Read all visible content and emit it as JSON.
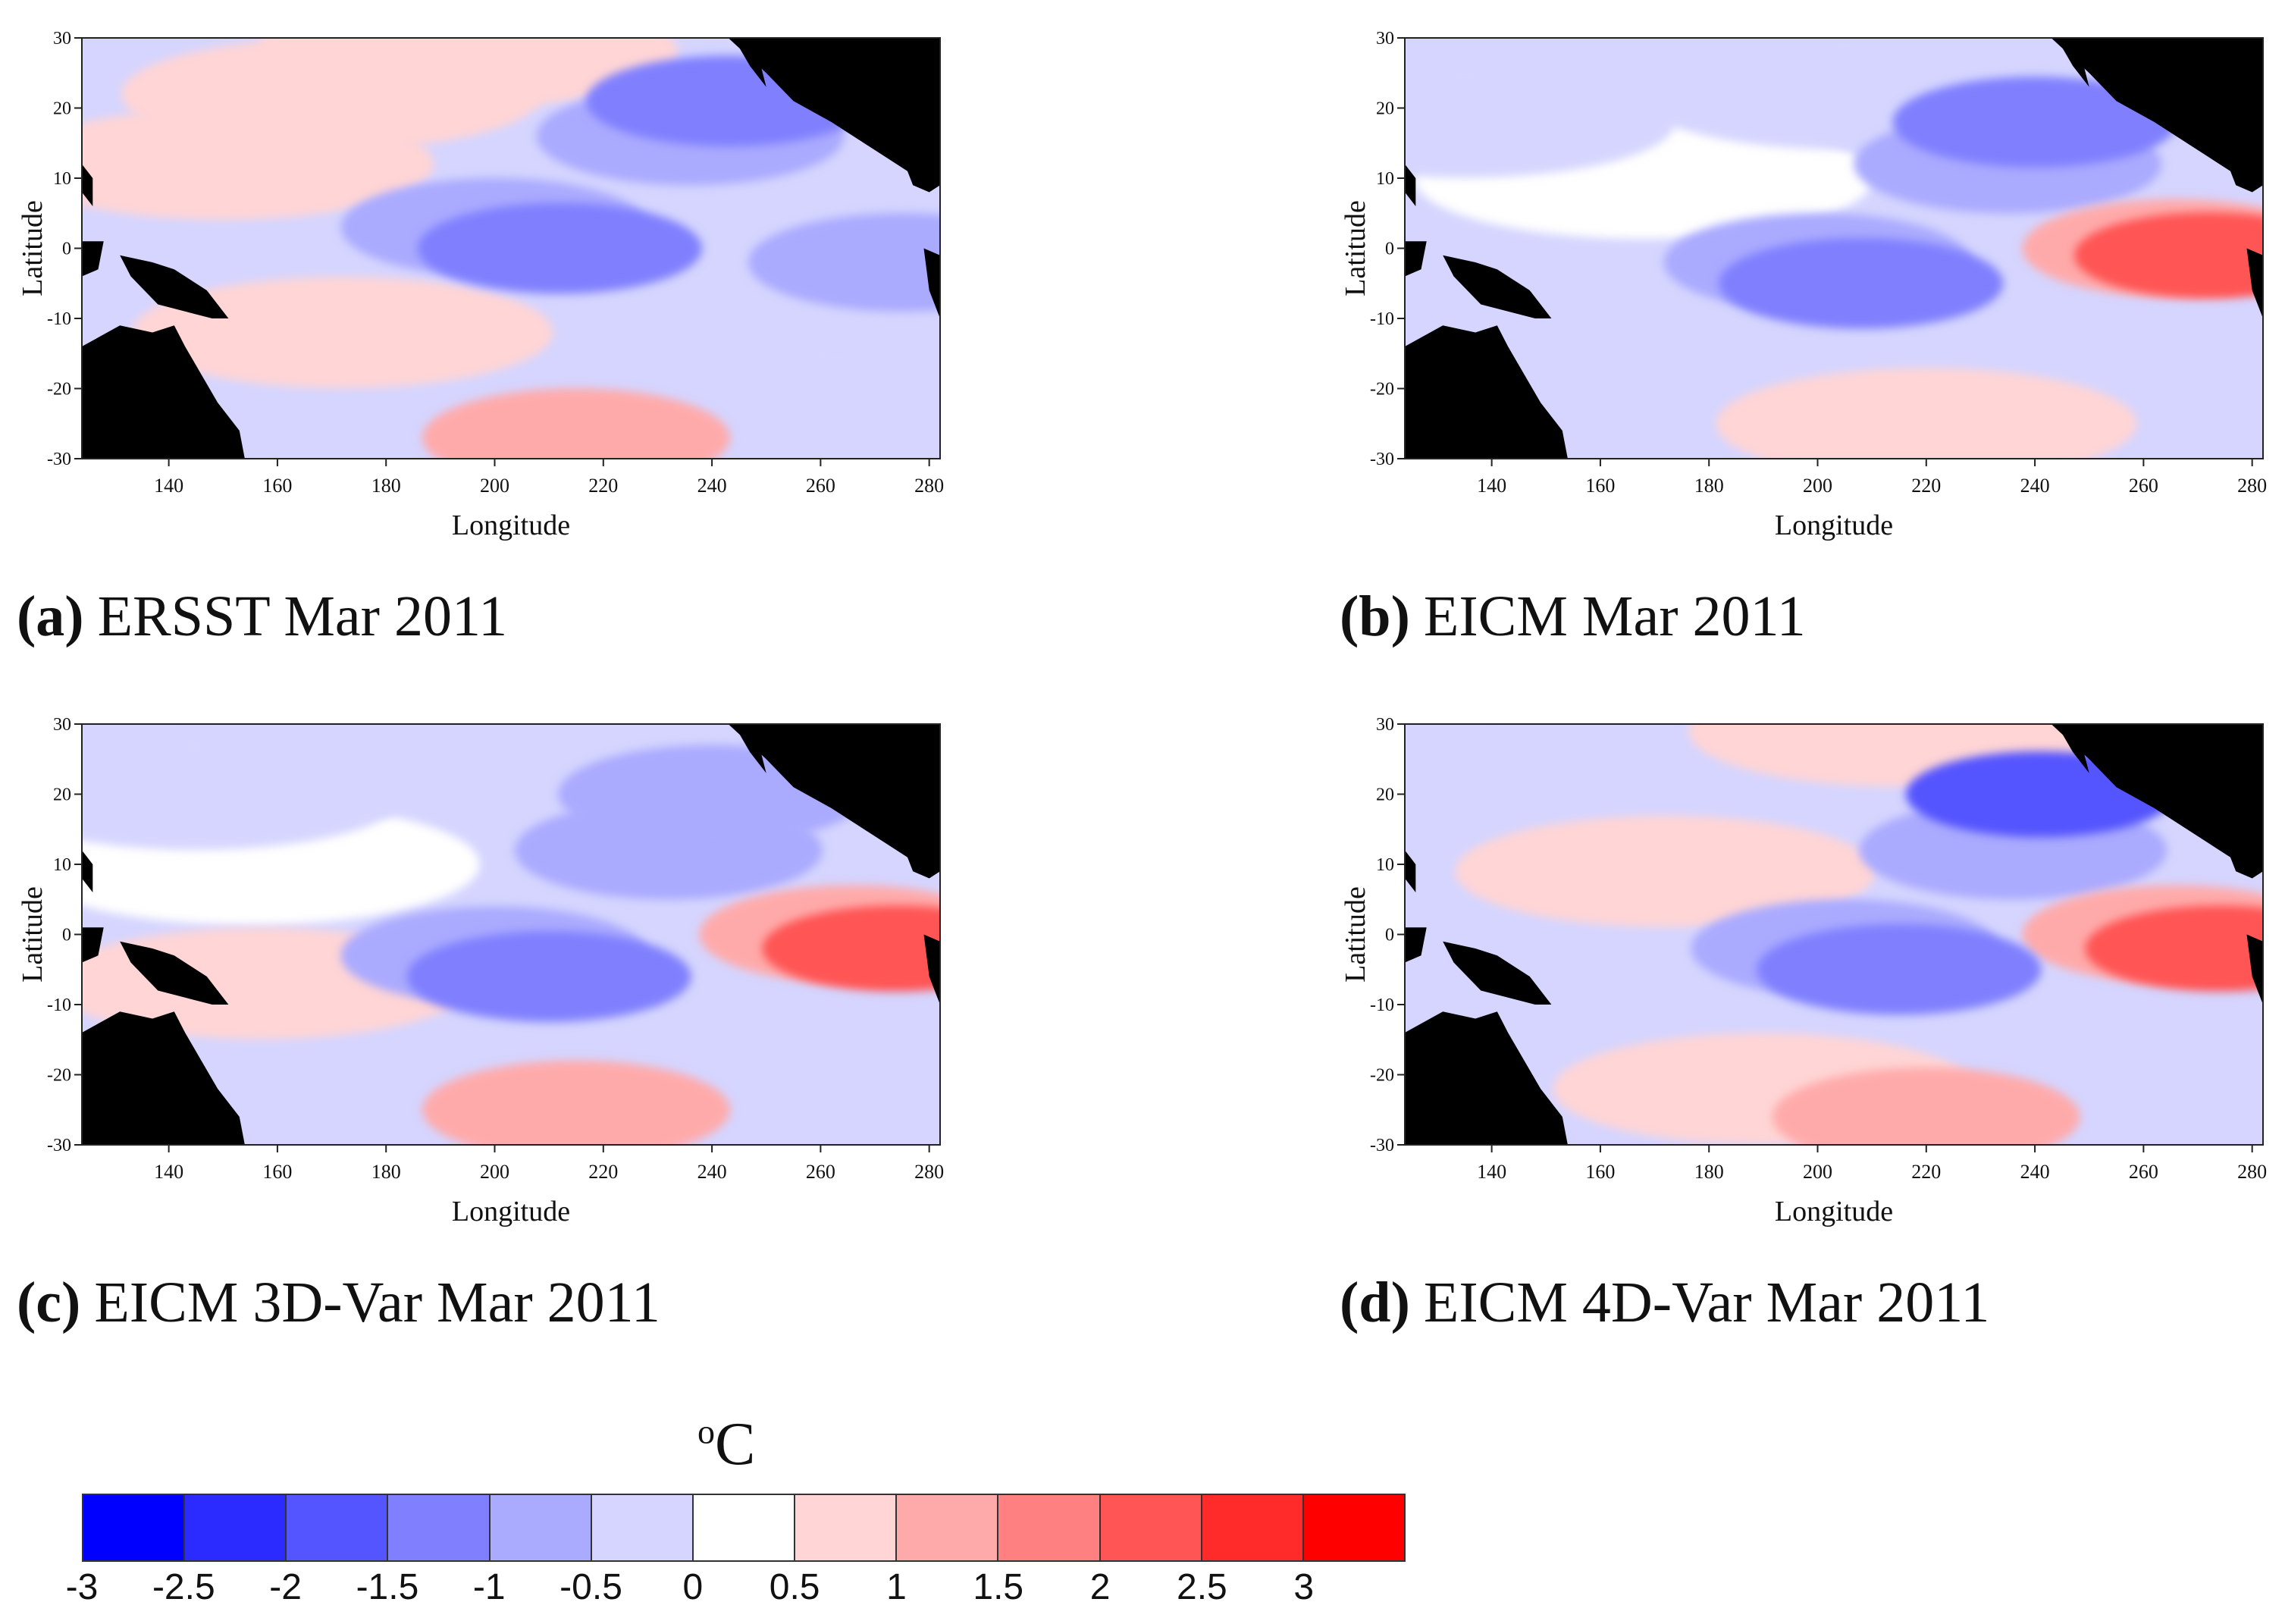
{
  "figure": {
    "panels": [
      {
        "id": "a",
        "letter": "(a)",
        "caption": "ERSST Mar 2011"
      },
      {
        "id": "b",
        "letter": "(b)",
        "caption": "EICM Mar 2011"
      },
      {
        "id": "c",
        "letter": "(c)",
        "caption": "EICM 3D-Var Mar 2011"
      },
      {
        "id": "d",
        "letter": "(d)",
        "caption": "EICM 4D-Var Mar 2011"
      }
    ],
    "legend": {
      "unit": "C",
      "unit_prefix": "o",
      "colors": [
        "#0000ff",
        "#2b2bff",
        "#5555ff",
        "#8080ff",
        "#aaaaff",
        "#d5d5ff",
        "#ffffff",
        "#ffd5d5",
        "#ffaaaa",
        "#ff8080",
        "#ff5555",
        "#ff2b2b",
        "#ff0000"
      ],
      "tick_labels": [
        "-3",
        "-2.5",
        "-2",
        "-1.5",
        "-1",
        "-0.5",
        "0",
        "0.5",
        "1",
        "1.5",
        "2",
        "2.5",
        "3"
      ]
    }
  },
  "chart_data": [
    {
      "type": "heatmap",
      "title": "ERSST Mar 2011",
      "xlabel": "Longitude",
      "ylabel": "Latitude",
      "xlim": [
        124,
        282
      ],
      "ylim": [
        -30,
        30
      ],
      "xticks": [
        140,
        160,
        180,
        200,
        220,
        240,
        260,
        280
      ],
      "yticks": [
        -30,
        -20,
        -10,
        0,
        10,
        20,
        30
      ],
      "unit": "°C",
      "anomaly_features": [
        {
          "lon": 212,
          "lat": 0,
          "value": -1.5
        },
        {
          "lon": 200,
          "lat": 3,
          "value": -1
        },
        {
          "lon": 243,
          "lat": 21,
          "value": -1.5
        },
        {
          "lon": 236,
          "lat": 16,
          "value": -1
        },
        {
          "lon": 275,
          "lat": -2,
          "value": -1
        },
        {
          "lon": 150,
          "lat": 12,
          "value": 0.5
        },
        {
          "lon": 170,
          "lat": 22,
          "value": 0.5
        },
        {
          "lon": 172,
          "lat": -12,
          "value": 0.5
        },
        {
          "lon": 215,
          "lat": -27,
          "value": 1
        },
        {
          "lon": 195,
          "lat": 28,
          "value": 0.5
        },
        {
          "lon": 263,
          "lat": -8,
          "value": -0.25
        }
      ]
    },
    {
      "type": "heatmap",
      "title": "EICM Mar 2011",
      "xlabel": "Longitude",
      "ylabel": "Latitude",
      "xlim": [
        124,
        282
      ],
      "ylim": [
        -30,
        30
      ],
      "xticks": [
        140,
        160,
        180,
        200,
        220,
        240,
        260,
        280
      ],
      "yticks": [
        -30,
        -20,
        -10,
        0,
        10,
        20,
        30
      ],
      "unit": "°C",
      "anomaly_features": [
        {
          "lon": 208,
          "lat": -5,
          "value": -1.5
        },
        {
          "lon": 200,
          "lat": -2,
          "value": -1
        },
        {
          "lon": 240,
          "lat": 18,
          "value": -1.5
        },
        {
          "lon": 235,
          "lat": 12,
          "value": -1
        },
        {
          "lon": 205,
          "lat": 22,
          "value": -0.5
        },
        {
          "lon": 272,
          "lat": -1,
          "value": 2
        },
        {
          "lon": 266,
          "lat": 0,
          "value": 1
        },
        {
          "lon": 220,
          "lat": -25,
          "value": 0.5
        },
        {
          "lon": 168,
          "lat": 10,
          "value": 0.25
        },
        {
          "lon": 135,
          "lat": 18,
          "value": -0.5
        }
      ]
    },
    {
      "type": "heatmap",
      "title": "EICM 3D-Var Mar 2011",
      "xlabel": "Longitude",
      "ylabel": "Latitude",
      "xlim": [
        124,
        282
      ],
      "ylim": [
        -30,
        30
      ],
      "xticks": [
        140,
        160,
        180,
        200,
        220,
        240,
        260,
        280
      ],
      "yticks": [
        -30,
        -20,
        -10,
        0,
        10,
        20,
        30
      ],
      "unit": "°C",
      "anomaly_features": [
        {
          "lon": 210,
          "lat": -6,
          "value": -1.5
        },
        {
          "lon": 200,
          "lat": -3,
          "value": -1
        },
        {
          "lon": 232,
          "lat": 12,
          "value": -1
        },
        {
          "lon": 240,
          "lat": 20,
          "value": -1
        },
        {
          "lon": 145,
          "lat": 20,
          "value": -0.5
        },
        {
          "lon": 274,
          "lat": -2,
          "value": 2
        },
        {
          "lon": 266,
          "lat": 0,
          "value": 1
        },
        {
          "lon": 215,
          "lat": -25,
          "value": 1
        },
        {
          "lon": 155,
          "lat": 10,
          "value": 0.25
        },
        {
          "lon": 157,
          "lat": -7,
          "value": 0.5
        }
      ]
    },
    {
      "type": "heatmap",
      "title": "EICM 4D-Var Mar 2011",
      "xlabel": "Longitude",
      "ylabel": "Latitude",
      "xlim": [
        124,
        282
      ],
      "ylim": [
        -30,
        30
      ],
      "xticks": [
        140,
        160,
        180,
        200,
        220,
        240,
        260,
        280
      ],
      "yticks": [
        -30,
        -20,
        -10,
        0,
        10,
        20,
        30
      ],
      "unit": "°C",
      "anomaly_features": [
        {
          "lon": 215,
          "lat": -5,
          "value": -1.5
        },
        {
          "lon": 205,
          "lat": -2,
          "value": -1
        },
        {
          "lon": 241,
          "lat": 20,
          "value": -2
        },
        {
          "lon": 236,
          "lat": 12,
          "value": -1
        },
        {
          "lon": 170,
          "lat": 23,
          "value": -0.5
        },
        {
          "lon": 274,
          "lat": -2,
          "value": 2
        },
        {
          "lon": 266,
          "lat": 0,
          "value": 1
        },
        {
          "lon": 220,
          "lat": -26,
          "value": 1
        },
        {
          "lon": 172,
          "lat": 9,
          "value": 0.5
        },
        {
          "lon": 190,
          "lat": -22,
          "value": 0.5
        },
        {
          "lon": 215,
          "lat": 29,
          "value": 0.5
        }
      ]
    }
  ]
}
